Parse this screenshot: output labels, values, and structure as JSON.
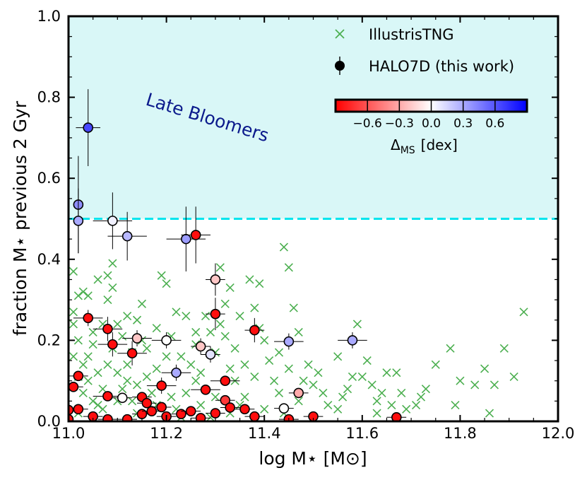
{
  "chart_data": {
    "type": "scatter",
    "xlabel": "log M⋆ [M⊙]",
    "ylabel": "fraction M⋆ previous 2 Gyr",
    "xlim": [
      11.0,
      12.0
    ],
    "ylim": [
      0.0,
      1.0
    ],
    "x_ticks": [
      "11.0",
      "11.2",
      "11.4",
      "11.6",
      "11.8",
      "12.0"
    ],
    "y_ticks": [
      "0.0",
      "0.2",
      "0.4",
      "0.6",
      "0.8",
      "1.0"
    ],
    "grid": false,
    "legend_position": "top-right",
    "threshold_line": {
      "y": 0.5,
      "color": "#00e5ee",
      "style": "dashed"
    },
    "shaded_region": {
      "y_from": 0.5,
      "y_to": 1.0,
      "color": "#d9f7f7",
      "label": "Late Bloomers",
      "label_color": "#0b1a8c"
    },
    "colorbar": {
      "label": "ΔMS [dex]",
      "label_main": "Δ",
      "label_sub": "MS",
      "label_unit": "[dex]",
      "range": [
        -0.9,
        0.9
      ],
      "ticks": [
        "−0.6",
        "−0.3",
        "0.0",
        "0.3",
        "0.6"
      ],
      "tick_values": [
        -0.6,
        -0.3,
        0.0,
        0.3,
        0.6
      ],
      "colors": [
        "#ff0000",
        "#ffffff",
        "#0000ff"
      ]
    },
    "series": [
      {
        "name": "IllustrisTNG",
        "marker": "x",
        "color": "#4caf50",
        "points": [
          [
            11.01,
            0.37
          ],
          [
            11.01,
            0.27
          ],
          [
            11.02,
            0.31
          ],
          [
            11.01,
            0.24
          ],
          [
            11.03,
            0.32
          ],
          [
            11.02,
            0.2
          ],
          [
            11.04,
            0.31
          ],
          [
            11.01,
            0.16
          ],
          [
            11.03,
            0.14
          ],
          [
            11.05,
            0.22
          ],
          [
            11.02,
            0.11
          ],
          [
            11.04,
            0.1
          ],
          [
            11.06,
            0.12
          ],
          [
            11.03,
            0.07
          ],
          [
            11.05,
            0.05
          ],
          [
            11.07,
            0.08
          ],
          [
            11.08,
            0.3
          ],
          [
            11.09,
            0.33
          ],
          [
            11.07,
            0.24
          ],
          [
            11.1,
            0.24
          ],
          [
            11.09,
            0.18
          ],
          [
            11.11,
            0.21
          ],
          [
            11.08,
            0.14
          ],
          [
            11.1,
            0.12
          ],
          [
            11.12,
            0.14
          ],
          [
            11.11,
            0.08
          ],
          [
            11.13,
            0.05
          ],
          [
            11.06,
            0.35
          ],
          [
            11.08,
            0.36
          ],
          [
            11.09,
            0.39
          ],
          [
            11.12,
            0.26
          ],
          [
            11.14,
            0.25
          ],
          [
            11.15,
            0.2
          ],
          [
            11.13,
            0.17
          ],
          [
            11.16,
            0.11
          ],
          [
            11.17,
            0.07
          ],
          [
            11.14,
            0.02
          ],
          [
            11.18,
            0.04
          ],
          [
            11.19,
            0.36
          ],
          [
            11.2,
            0.34
          ],
          [
            11.21,
            0.21
          ],
          [
            11.22,
            0.27
          ],
          [
            11.24,
            0.26
          ],
          [
            11.23,
            0.16
          ],
          [
            11.25,
            0.14
          ],
          [
            11.26,
            0.1
          ],
          [
            11.24,
            0.07
          ],
          [
            11.27,
            0.04
          ],
          [
            11.22,
            0.03
          ],
          [
            11.28,
            0.26
          ],
          [
            11.29,
            0.22
          ],
          [
            11.3,
            0.17
          ],
          [
            11.31,
            0.24
          ],
          [
            11.32,
            0.21
          ],
          [
            11.33,
            0.13
          ],
          [
            11.34,
            0.1
          ],
          [
            11.3,
            0.06
          ],
          [
            11.35,
            0.04
          ],
          [
            11.36,
            0.06
          ],
          [
            11.31,
            0.38
          ],
          [
            11.33,
            0.33
          ],
          [
            11.35,
            0.26
          ],
          [
            11.37,
            0.35
          ],
          [
            11.38,
            0.28
          ],
          [
            11.39,
            0.23
          ],
          [
            11.4,
            0.2
          ],
          [
            11.41,
            0.15
          ],
          [
            11.42,
            0.1
          ],
          [
            11.43,
            0.07
          ],
          [
            11.44,
            0.43
          ],
          [
            11.45,
            0.38
          ],
          [
            11.46,
            0.28
          ],
          [
            11.47,
            0.22
          ],
          [
            11.45,
            0.13
          ],
          [
            11.48,
            0.1
          ],
          [
            11.5,
            0.09
          ],
          [
            11.51,
            0.12
          ],
          [
            11.52,
            0.07
          ],
          [
            11.53,
            0.04
          ],
          [
            11.55,
            0.03
          ],
          [
            11.56,
            0.06
          ],
          [
            11.57,
            0.08
          ],
          [
            11.59,
            0.24
          ],
          [
            11.6,
            0.11
          ],
          [
            11.61,
            0.15
          ],
          [
            11.62,
            0.09
          ],
          [
            11.63,
            0.05
          ],
          [
            11.64,
            0.07
          ],
          [
            11.65,
            0.12
          ],
          [
            11.66,
            0.04
          ],
          [
            11.67,
            0.12
          ],
          [
            11.68,
            0.07
          ],
          [
            11.69,
            0.03
          ],
          [
            11.71,
            0.04
          ],
          [
            11.73,
            0.08
          ],
          [
            11.75,
            0.14
          ],
          [
            11.78,
            0.18
          ],
          [
            11.8,
            0.1
          ],
          [
            11.83,
            0.09
          ],
          [
            11.85,
            0.13
          ],
          [
            11.87,
            0.09
          ],
          [
            11.89,
            0.18
          ],
          [
            11.91,
            0.11
          ],
          [
            11.93,
            0.27
          ],
          [
            11.04,
            0.16
          ],
          [
            11.06,
            0.04
          ],
          [
            11.12,
            0.1
          ],
          [
            11.16,
            0.18
          ],
          [
            11.2,
            0.16
          ],
          [
            11.26,
            0.19
          ],
          [
            11.34,
            0.18
          ],
          [
            11.38,
            0.11
          ],
          [
            11.43,
            0.17
          ],
          [
            11.47,
            0.05
          ],
          [
            11.55,
            0.16
          ],
          [
            11.02,
            0.02
          ],
          [
            11.05,
            0.19
          ],
          [
            11.07,
            0.03
          ],
          [
            11.1,
            0.05
          ],
          [
            11.14,
            0.09
          ],
          [
            11.18,
            0.13
          ],
          [
            11.21,
            0.06
          ],
          [
            11.23,
            0.01
          ],
          [
            11.27,
            0.12
          ],
          [
            11.29,
            0.01
          ],
          [
            11.33,
            0.02
          ],
          [
            11.36,
            0.14
          ],
          [
            11.4,
            0.03
          ],
          [
            11.44,
            0.02
          ],
          [
            11.49,
            0.14
          ],
          [
            11.58,
            0.11
          ],
          [
            11.63,
            0.02
          ],
          [
            11.72,
            0.06
          ],
          [
            11.79,
            0.04
          ],
          [
            11.86,
            0.02
          ],
          [
            11.15,
            0.29
          ],
          [
            11.18,
            0.23
          ],
          [
            11.26,
            0.22
          ],
          [
            11.32,
            0.29
          ],
          [
            11.39,
            0.34
          ]
        ]
      },
      {
        "name": "HALO7D (this work)",
        "marker": "circle",
        "color": "#000000",
        "points": [
          {
            "x": 11.04,
            "y": 0.725,
            "xerr": 0.025,
            "yerr": 0.095,
            "c": 0.65
          },
          {
            "x": 11.02,
            "y": 0.535,
            "xerr": 0.0,
            "yerr": 0.12,
            "c": 0.4
          },
          {
            "x": 11.02,
            "y": 0.495,
            "xerr": 0.0,
            "yerr": 0.08,
            "c": 0.3
          },
          {
            "x": 11.09,
            "y": 0.495,
            "xerr": 0.04,
            "yerr": 0.07,
            "c": 0.05
          },
          {
            "x": 11.12,
            "y": 0.457,
            "xerr": 0.04,
            "yerr": 0.06,
            "c": 0.25
          },
          {
            "x": 11.24,
            "y": 0.45,
            "xerr": 0.04,
            "yerr": 0.08,
            "c": 0.35
          },
          {
            "x": 11.26,
            "y": 0.46,
            "xerr": 0.03,
            "yerr": 0.07,
            "c": -0.85
          },
          {
            "x": 11.3,
            "y": 0.35,
            "xerr": 0.02,
            "yerr": 0.04,
            "c": -0.2
          },
          {
            "x": 11.3,
            "y": 0.265,
            "xerr": 0.02,
            "yerr": 0.04,
            "c": -0.85
          },
          {
            "x": 11.04,
            "y": 0.255,
            "xerr": 0.03,
            "yerr": 0.02,
            "c": -0.85
          },
          {
            "x": 11.08,
            "y": 0.228,
            "xerr": 0.03,
            "yerr": 0.03,
            "c": -0.85
          },
          {
            "x": 11.09,
            "y": 0.19,
            "xerr": 0.03,
            "yerr": 0.03,
            "c": -0.85
          },
          {
            "x": 11.14,
            "y": 0.205,
            "xerr": 0.03,
            "yerr": 0.02,
            "c": -0.2
          },
          {
            "x": 11.13,
            "y": 0.168,
            "xerr": 0.03,
            "yerr": 0.03,
            "c": -0.85
          },
          {
            "x": 11.2,
            "y": 0.2,
            "xerr": 0.03,
            "yerr": 0.02,
            "c": 0.0
          },
          {
            "x": 11.27,
            "y": 0.185,
            "xerr": 0.02,
            "yerr": 0.02,
            "c": -0.2
          },
          {
            "x": 11.29,
            "y": 0.165,
            "xerr": 0.02,
            "yerr": 0.02,
            "c": 0.1
          },
          {
            "x": 11.38,
            "y": 0.225,
            "xerr": 0.02,
            "yerr": 0.03,
            "c": -0.85
          },
          {
            "x": 11.45,
            "y": 0.197,
            "xerr": 0.03,
            "yerr": 0.02,
            "c": 0.3
          },
          {
            "x": 11.58,
            "y": 0.2,
            "xerr": 0.03,
            "yerr": 0.02,
            "c": 0.3
          },
          {
            "x": 11.22,
            "y": 0.12,
            "xerr": 0.03,
            "yerr": 0.02,
            "c": 0.3
          },
          {
            "x": 11.02,
            "y": 0.112,
            "xerr": 0.02,
            "yerr": 0.01,
            "c": -0.85
          },
          {
            "x": 11.01,
            "y": 0.085,
            "xerr": 0.02,
            "yerr": 0.01,
            "c": -0.85
          },
          {
            "x": 11.19,
            "y": 0.088,
            "xerr": 0.03,
            "yerr": 0.02,
            "c": -0.85
          },
          {
            "x": 11.28,
            "y": 0.078,
            "xerr": 0.03,
            "yerr": 0.01,
            "c": -0.85
          },
          {
            "x": 11.32,
            "y": 0.1,
            "xerr": 0.03,
            "yerr": 0.01,
            "c": -0.85
          },
          {
            "x": 11.08,
            "y": 0.062,
            "xerr": 0.03,
            "yerr": 0.01,
            "c": -0.85
          },
          {
            "x": 11.11,
            "y": 0.058,
            "xerr": 0.02,
            "yerr": 0.01,
            "c": 0.0
          },
          {
            "x": 11.15,
            "y": 0.06,
            "xerr": 0.02,
            "yerr": 0.01,
            "c": -0.85
          },
          {
            "x": 11.16,
            "y": 0.045,
            "xerr": 0.02,
            "yerr": 0.01,
            "c": -0.85
          },
          {
            "x": 11.47,
            "y": 0.07,
            "xerr": 0.02,
            "yerr": 0.01,
            "c": -0.3
          },
          {
            "x": 11.32,
            "y": 0.052,
            "xerr": 0.02,
            "yerr": 0.01,
            "c": -0.7
          },
          {
            "x": 11.44,
            "y": 0.032,
            "xerr": 0.02,
            "yerr": 0.01,
            "c": 0.0
          },
          {
            "x": 11.02,
            "y": 0.03,
            "xerr": 0.02,
            "yerr": 0.01,
            "c": -0.85
          },
          {
            "x": 11.0,
            "y": 0.028,
            "xerr": 0.0,
            "yerr": 0.01,
            "c": -0.85
          },
          {
            "x": 11.05,
            "y": 0.012,
            "xerr": 0.02,
            "yerr": 0.01,
            "c": -0.85
          },
          {
            "x": 11.0,
            "y": 0.005,
            "xerr": 0.0,
            "yerr": 0.01,
            "c": -0.85
          },
          {
            "x": 11.08,
            "y": 0.005,
            "xerr": 0.02,
            "yerr": 0.01,
            "c": -0.85
          },
          {
            "x": 11.15,
            "y": 0.018,
            "xerr": 0.02,
            "yerr": 0.01,
            "c": -0.85
          },
          {
            "x": 11.17,
            "y": 0.025,
            "xerr": 0.02,
            "yerr": 0.01,
            "c": -0.85
          },
          {
            "x": 11.19,
            "y": 0.035,
            "xerr": 0.02,
            "yerr": 0.01,
            "c": -0.85
          },
          {
            "x": 11.2,
            "y": 0.012,
            "xerr": 0.02,
            "yerr": 0.01,
            "c": -0.85
          },
          {
            "x": 11.23,
            "y": 0.018,
            "xerr": 0.02,
            "yerr": 0.01,
            "c": -0.85
          },
          {
            "x": 11.25,
            "y": 0.025,
            "xerr": 0.02,
            "yerr": 0.01,
            "c": -0.85
          },
          {
            "x": 11.27,
            "y": 0.008,
            "xerr": 0.02,
            "yerr": 0.01,
            "c": -0.85
          },
          {
            "x": 11.3,
            "y": 0.02,
            "xerr": 0.02,
            "yerr": 0.01,
            "c": -0.85
          },
          {
            "x": 11.33,
            "y": 0.034,
            "xerr": 0.02,
            "yerr": 0.01,
            "c": -0.85
          },
          {
            "x": 11.36,
            "y": 0.03,
            "xerr": 0.02,
            "yerr": 0.01,
            "c": -0.85
          },
          {
            "x": 11.38,
            "y": 0.012,
            "xerr": 0.02,
            "yerr": 0.01,
            "c": -0.85
          },
          {
            "x": 11.45,
            "y": 0.005,
            "xerr": 0.02,
            "yerr": 0.01,
            "c": -0.85
          },
          {
            "x": 11.5,
            "y": 0.012,
            "xerr": 0.02,
            "yerr": 0.01,
            "c": -0.85
          },
          {
            "x": 11.67,
            "y": 0.01,
            "xerr": 0.02,
            "yerr": 0.01,
            "c": -0.85
          },
          {
            "x": 11.12,
            "y": 0.005,
            "xerr": 0.02,
            "yerr": 0.01,
            "c": -0.85
          }
        ]
      }
    ]
  }
}
